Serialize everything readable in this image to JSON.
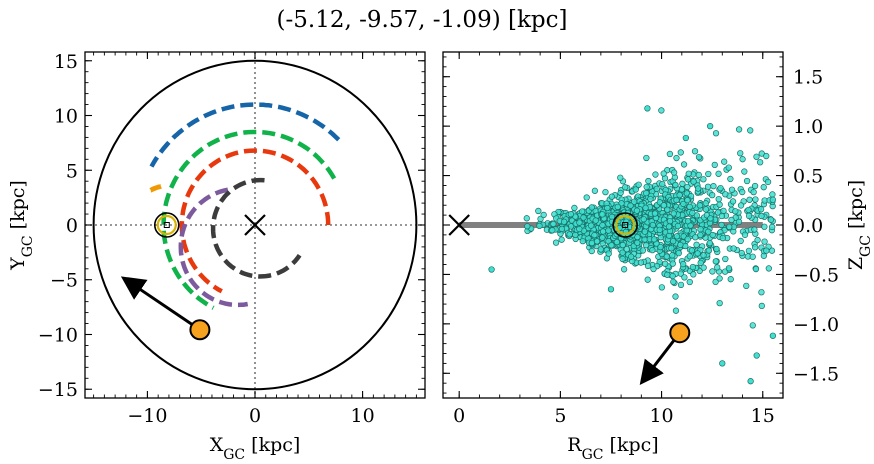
{
  "chart_data": [
    {
      "type": "line",
      "panel": "left",
      "title": "(-5.12, -9.57, -1.09) [kpc]",
      "xlabel": "X",
      "xlabel_sub": "GC",
      "xlabel_unit": " [kpc]",
      "ylabel": "Y",
      "ylabel_sub": "GC",
      "ylabel_unit": " [kpc]",
      "xlim": [
        -15.8,
        15.8
      ],
      "ylim": [
        -15.8,
        15.8
      ],
      "xticks": [
        -10,
        0,
        10
      ],
      "xtick_labels": [
        "−10",
        "0",
        "10"
      ],
      "yticks": [
        -15,
        -10,
        -5,
        0,
        5,
        10,
        15
      ],
      "ytick_labels": [
        "−15",
        "−10",
        "−5",
        "0",
        "5",
        "10",
        "15"
      ],
      "boundary_circle_radius": 15,
      "galactic_center": [
        0,
        0
      ],
      "sun": [
        -8.2,
        0
      ],
      "object": [
        -5.12,
        -9.57
      ],
      "velocity_arrow_end": [
        -12.0,
        -5.0
      ],
      "series": [
        {
          "color": "#1565a8",
          "radius": 11.0,
          "theta_start_deg": 45,
          "theta_end_deg": 151
        },
        {
          "color": "#10b24a",
          "radius": 8.5,
          "theta_start_deg": 30,
          "theta_end_deg": 243
        },
        {
          "color": "#e8380d",
          "radius": 6.8,
          "theta_start_deg": 0,
          "theta_end_deg": 243
        },
        {
          "color": "#ee9a00",
          "radius": 3.6,
          "theta_start_deg": 102,
          "theta_end_deg": 118,
          "cx": -8.0,
          "cy": 0.0
        },
        {
          "color": "#7d5a9e",
          "radius": 5.3,
          "theta_start_deg": 100,
          "theta_end_deg": 280,
          "cx": -1.6,
          "cy": -2.0
        },
        {
          "color": "#3c3c3c",
          "radius": 4.4,
          "theta_start_deg": 85,
          "theta_end_deg": 326,
          "cx": 0.5,
          "cy": -0.3
        }
      ]
    },
    {
      "type": "scatter",
      "panel": "right",
      "xlabel": "R",
      "xlabel_sub": "GC",
      "xlabel_unit": " [kpc]",
      "ylabel": "Z",
      "ylabel_sub": "GC",
      "ylabel_unit": " [kpc]",
      "xlim": [
        -0.8,
        16.0
      ],
      "ylim": [
        -1.75,
        1.75
      ],
      "xticks": [
        0,
        5,
        10,
        15
      ],
      "xtick_labels": [
        "0",
        "5",
        "10",
        "15"
      ],
      "yticks": [
        -1.5,
        -1.0,
        -0.5,
        0.0,
        0.5,
        1.0,
        1.5
      ],
      "ytick_labels": [
        "−1.5",
        "−1.0",
        "−0.5",
        "0.0",
        "0.5",
        "1.0",
        "1.5"
      ],
      "disk_line": {
        "x": [
          0,
          15
        ],
        "y": [
          0,
          0
        ],
        "color": "#808080"
      },
      "galactic_center": [
        0,
        0
      ],
      "sun": [
        8.2,
        0.0
      ],
      "object": [
        10.9,
        -1.09
      ],
      "velocity_arrow_end": [
        9.1,
        -1.57
      ],
      "point_color": "#3fe0d0",
      "point_edge": "#1a6e66",
      "cloud": {
        "x_range": [
          3.0,
          15.8
        ],
        "z_spread_at_x": [
          [
            3,
            0.08
          ],
          [
            6,
            0.18
          ],
          [
            9,
            0.42
          ],
          [
            12,
            0.65
          ],
          [
            15,
            0.9
          ]
        ],
        "outliers": [
          [
            1.6,
            -0.45
          ],
          [
            9.3,
            1.18
          ],
          [
            7.5,
            -0.65
          ],
          [
            14.4,
            -1.58
          ],
          [
            15.5,
            -1.12
          ],
          [
            13.0,
            -1.4
          ],
          [
            14.7,
            -1.32
          ],
          [
            12.4,
            1.0
          ],
          [
            11.2,
            0.88
          ]
        ]
      }
    }
  ]
}
